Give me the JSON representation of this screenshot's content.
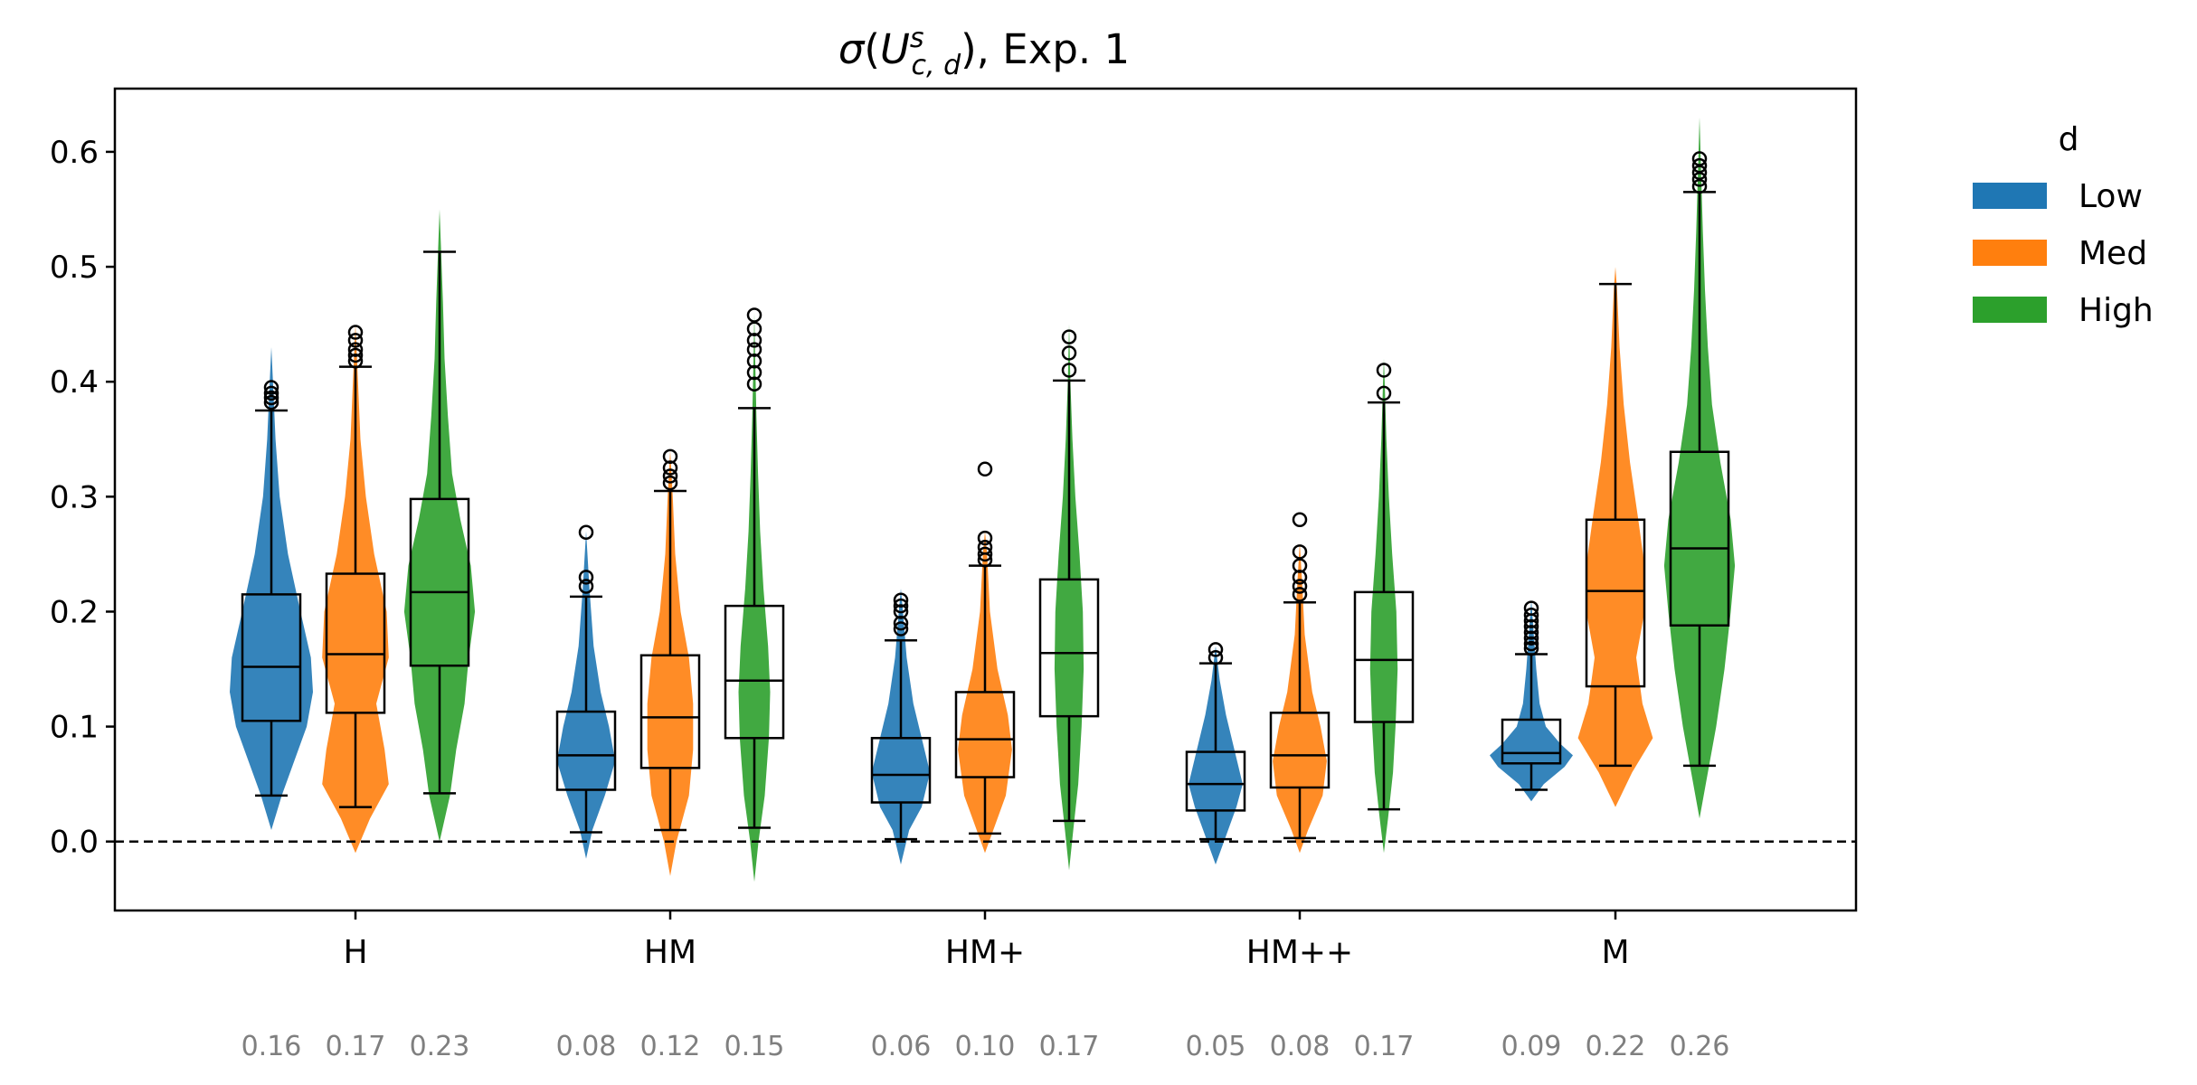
{
  "chart_data": {
    "type": "violin",
    "title_parts": {
      "sigma": "σ",
      "U": "U",
      "sup": "s",
      "sub": "c, d",
      "rest": "), Exp. 1",
      "open": "("
    },
    "categories": [
      "H",
      "HM",
      "HM+",
      "HM++",
      "M"
    ],
    "legend": {
      "title": "d",
      "placement": "top-right outside",
      "entries": [
        {
          "name": "Low",
          "color": "#1f77b4"
        },
        {
          "name": "Med",
          "color": "#ff7f0e"
        },
        {
          "name": "High",
          "color": "#2ca02c"
        }
      ]
    },
    "ylim": [
      -0.06,
      0.655
    ],
    "yticks": [
      "0.0",
      "0.1",
      "0.2",
      "0.3",
      "0.4",
      "0.5",
      "0.6"
    ],
    "ytick_values": [
      0.0,
      0.1,
      0.2,
      0.3,
      0.4,
      0.5,
      0.6
    ],
    "reference_line": {
      "y": 0.0,
      "style": "dashed"
    },
    "series": [
      {
        "name": "Low",
        "stats": [
          {
            "q1": 0.105,
            "median": 0.152,
            "q3": 0.215,
            "whislo": 0.04,
            "whishi": 0.375,
            "fliers": [
              0.382,
              0.386,
              0.39,
              0.395
            ],
            "violin": [
              [
                0.01,
                0.0
              ],
              [
                0.04,
                0.25
              ],
              [
                0.07,
                0.55
              ],
              [
                0.1,
                0.85
              ],
              [
                0.13,
                1.0
              ],
              [
                0.16,
                0.95
              ],
              [
                0.2,
                0.7
              ],
              [
                0.25,
                0.4
              ],
              [
                0.3,
                0.2
              ],
              [
                0.35,
                0.1
              ],
              [
                0.4,
                0.04
              ],
              [
                0.43,
                0.0
              ]
            ]
          },
          {
            "q1": 0.045,
            "median": 0.075,
            "q3": 0.113,
            "whislo": 0.008,
            "whishi": 0.213,
            "fliers": [
              0.222,
              0.23,
              0.269
            ],
            "violin": [
              [
                -0.015,
                0.0
              ],
              [
                0.01,
                0.15
              ],
              [
                0.04,
                0.45
              ],
              [
                0.07,
                0.7
              ],
              [
                0.1,
                0.55
              ],
              [
                0.13,
                0.35
              ],
              [
                0.17,
                0.18
              ],
              [
                0.22,
                0.08
              ],
              [
                0.27,
                0.0
              ]
            ]
          },
          {
            "q1": 0.034,
            "median": 0.058,
            "q3": 0.09,
            "whislo": 0.002,
            "whishi": 0.175,
            "fliers": [
              0.185,
              0.19,
              0.2,
              0.205,
              0.21
            ],
            "violin": [
              [
                -0.02,
                0.0
              ],
              [
                0.01,
                0.2
              ],
              [
                0.03,
                0.5
              ],
              [
                0.06,
                0.7
              ],
              [
                0.09,
                0.5
              ],
              [
                0.12,
                0.3
              ],
              [
                0.16,
                0.14
              ],
              [
                0.2,
                0.05
              ],
              [
                0.22,
                0.0
              ]
            ]
          },
          {
            "q1": 0.027,
            "median": 0.05,
            "q3": 0.078,
            "whislo": 0.002,
            "whishi": 0.155,
            "fliers": [
              0.16,
              0.167
            ],
            "violin": [
              [
                -0.02,
                0.0
              ],
              [
                0.0,
                0.2
              ],
              [
                0.03,
                0.5
              ],
              [
                0.05,
                0.65
              ],
              [
                0.08,
                0.45
              ],
              [
                0.11,
                0.25
              ],
              [
                0.14,
                0.1
              ],
              [
                0.17,
                0.0
              ]
            ]
          },
          {
            "q1": 0.068,
            "median": 0.077,
            "q3": 0.106,
            "whislo": 0.045,
            "whishi": 0.163,
            "fliers": [
              0.168,
              0.172,
              0.177,
              0.182,
              0.187,
              0.192,
              0.197,
              0.203
            ],
            "violin": [
              [
                0.035,
                0.0
              ],
              [
                0.05,
                0.3
              ],
              [
                0.065,
                0.8
              ],
              [
                0.075,
                1.0
              ],
              [
                0.085,
                0.7
              ],
              [
                0.1,
                0.35
              ],
              [
                0.12,
                0.2
              ],
              [
                0.15,
                0.12
              ],
              [
                0.18,
                0.06
              ],
              [
                0.21,
                0.0
              ]
            ]
          }
        ]
      },
      {
        "name": "Med",
        "stats": [
          {
            "q1": 0.112,
            "median": 0.163,
            "q3": 0.233,
            "whislo": 0.03,
            "whishi": 0.413,
            "fliers": [
              0.418,
              0.423,
              0.428,
              0.436,
              0.443
            ],
            "violin": [
              [
                -0.01,
                0.0
              ],
              [
                0.02,
                0.35
              ],
              [
                0.05,
                0.8
              ],
              [
                0.08,
                0.7
              ],
              [
                0.12,
                0.5
              ],
              [
                0.16,
                0.8
              ],
              [
                0.2,
                0.75
              ],
              [
                0.25,
                0.45
              ],
              [
                0.3,
                0.25
              ],
              [
                0.35,
                0.12
              ],
              [
                0.4,
                0.06
              ],
              [
                0.45,
                0.0
              ]
            ]
          },
          {
            "q1": 0.064,
            "median": 0.108,
            "q3": 0.162,
            "whislo": 0.01,
            "whishi": 0.305,
            "fliers": [
              0.312,
              0.318,
              0.325,
              0.335
            ],
            "violin": [
              [
                -0.03,
                0.0
              ],
              [
                0.0,
                0.15
              ],
              [
                0.04,
                0.45
              ],
              [
                0.08,
                0.55
              ],
              [
                0.12,
                0.55
              ],
              [
                0.16,
                0.45
              ],
              [
                0.2,
                0.25
              ],
              [
                0.25,
                0.12
              ],
              [
                0.3,
                0.06
              ],
              [
                0.34,
                0.0
              ]
            ]
          },
          {
            "q1": 0.056,
            "median": 0.089,
            "q3": 0.13,
            "whislo": 0.007,
            "whishi": 0.24,
            "fliers": [
              0.245,
              0.25,
              0.256,
              0.264,
              0.324
            ],
            "violin": [
              [
                -0.01,
                0.0
              ],
              [
                0.01,
                0.2
              ],
              [
                0.04,
                0.5
              ],
              [
                0.08,
                0.65
              ],
              [
                0.11,
                0.55
              ],
              [
                0.15,
                0.3
              ],
              [
                0.2,
                0.12
              ],
              [
                0.25,
                0.05
              ],
              [
                0.27,
                0.0
              ]
            ]
          },
          {
            "q1": 0.047,
            "median": 0.075,
            "q3": 0.112,
            "whislo": 0.003,
            "whishi": 0.208,
            "fliers": [
              0.215,
              0.222,
              0.23,
              0.24,
              0.252,
              0.28
            ],
            "violin": [
              [
                -0.01,
                0.0
              ],
              [
                0.01,
                0.2
              ],
              [
                0.04,
                0.55
              ],
              [
                0.07,
                0.65
              ],
              [
                0.1,
                0.5
              ],
              [
                0.13,
                0.3
              ],
              [
                0.18,
                0.12
              ],
              [
                0.23,
                0.05
              ],
              [
                0.26,
                0.0
              ]
            ]
          },
          {
            "q1": 0.135,
            "median": 0.218,
            "q3": 0.28,
            "whislo": 0.066,
            "whishi": 0.485,
            "fliers": [],
            "violin": [
              [
                0.03,
                0.0
              ],
              [
                0.06,
                0.4
              ],
              [
                0.09,
                0.9
              ],
              [
                0.12,
                0.65
              ],
              [
                0.16,
                0.5
              ],
              [
                0.2,
                0.7
              ],
              [
                0.24,
                0.7
              ],
              [
                0.28,
                0.55
              ],
              [
                0.33,
                0.35
              ],
              [
                0.38,
                0.2
              ],
              [
                0.43,
                0.1
              ],
              [
                0.48,
                0.04
              ],
              [
                0.5,
                0.0
              ]
            ]
          }
        ]
      },
      {
        "name": "High",
        "stats": [
          {
            "q1": 0.153,
            "median": 0.217,
            "q3": 0.298,
            "whislo": 0.042,
            "whishi": 0.513,
            "fliers": [],
            "violin": [
              [
                0.0,
                0.0
              ],
              [
                0.04,
                0.25
              ],
              [
                0.08,
                0.4
              ],
              [
                0.12,
                0.6
              ],
              [
                0.16,
                0.7
              ],
              [
                0.2,
                0.85
              ],
              [
                0.24,
                0.75
              ],
              [
                0.28,
                0.5
              ],
              [
                0.32,
                0.3
              ],
              [
                0.37,
                0.2
              ],
              [
                0.42,
                0.12
              ],
              [
                0.47,
                0.08
              ],
              [
                0.52,
                0.03
              ],
              [
                0.55,
                0.0
              ]
            ]
          },
          {
            "q1": 0.09,
            "median": 0.14,
            "q3": 0.205,
            "whislo": 0.012,
            "whishi": 0.377,
            "fliers": [
              0.398,
              0.408,
              0.418,
              0.428,
              0.436,
              0.446,
              0.458
            ],
            "violin": [
              [
                -0.035,
                0.0
              ],
              [
                0.0,
                0.1
              ],
              [
                0.04,
                0.25
              ],
              [
                0.09,
                0.35
              ],
              [
                0.13,
                0.38
              ],
              [
                0.17,
                0.33
              ],
              [
                0.22,
                0.22
              ],
              [
                0.27,
                0.14
              ],
              [
                0.32,
                0.09
              ],
              [
                0.37,
                0.05
              ],
              [
                0.42,
                0.02
              ],
              [
                0.46,
                0.0
              ]
            ]
          },
          {
            "q1": 0.109,
            "median": 0.164,
            "q3": 0.228,
            "whislo": 0.018,
            "whishi": 0.401,
            "fliers": [
              0.41,
              0.425,
              0.439
            ],
            "violin": [
              [
                -0.025,
                0.0
              ],
              [
                0.01,
                0.1
              ],
              [
                0.05,
                0.22
              ],
              [
                0.1,
                0.3
              ],
              [
                0.15,
                0.35
              ],
              [
                0.2,
                0.33
              ],
              [
                0.25,
                0.25
              ],
              [
                0.3,
                0.15
              ],
              [
                0.35,
                0.08
              ],
              [
                0.4,
                0.03
              ],
              [
                0.45,
                0.0
              ]
            ]
          },
          {
            "q1": 0.104,
            "median": 0.158,
            "q3": 0.217,
            "whislo": 0.028,
            "whishi": 0.382,
            "fliers": [
              0.39,
              0.41
            ],
            "violin": [
              [
                -0.01,
                0.0
              ],
              [
                0.02,
                0.1
              ],
              [
                0.06,
                0.22
              ],
              [
                0.1,
                0.28
              ],
              [
                0.15,
                0.33
              ],
              [
                0.2,
                0.3
              ],
              [
                0.25,
                0.2
              ],
              [
                0.3,
                0.12
              ],
              [
                0.35,
                0.06
              ],
              [
                0.4,
                0.02
              ],
              [
                0.42,
                0.0
              ]
            ]
          },
          {
            "q1": 0.188,
            "median": 0.255,
            "q3": 0.339,
            "whislo": 0.066,
            "whishi": 0.565,
            "fliers": [
              0.57,
              0.576,
              0.582,
              0.588,
              0.594
            ],
            "violin": [
              [
                0.02,
                0.0
              ],
              [
                0.06,
                0.2
              ],
              [
                0.1,
                0.4
              ],
              [
                0.15,
                0.6
              ],
              [
                0.2,
                0.75
              ],
              [
                0.24,
                0.85
              ],
              [
                0.28,
                0.75
              ],
              [
                0.33,
                0.5
              ],
              [
                0.38,
                0.3
              ],
              [
                0.43,
                0.2
              ],
              [
                0.48,
                0.13
              ],
              [
                0.53,
                0.08
              ],
              [
                0.58,
                0.04
              ],
              [
                0.63,
                0.0
              ]
            ]
          }
        ]
      }
    ],
    "mean_labels": [
      [
        "0.16",
        "0.17",
        "0.23"
      ],
      [
        "0.08",
        "0.12",
        "0.15"
      ],
      [
        "0.06",
        "0.10",
        "0.17"
      ],
      [
        "0.05",
        "0.08",
        "0.17"
      ],
      [
        "0.09",
        "0.22",
        "0.26"
      ]
    ]
  }
}
